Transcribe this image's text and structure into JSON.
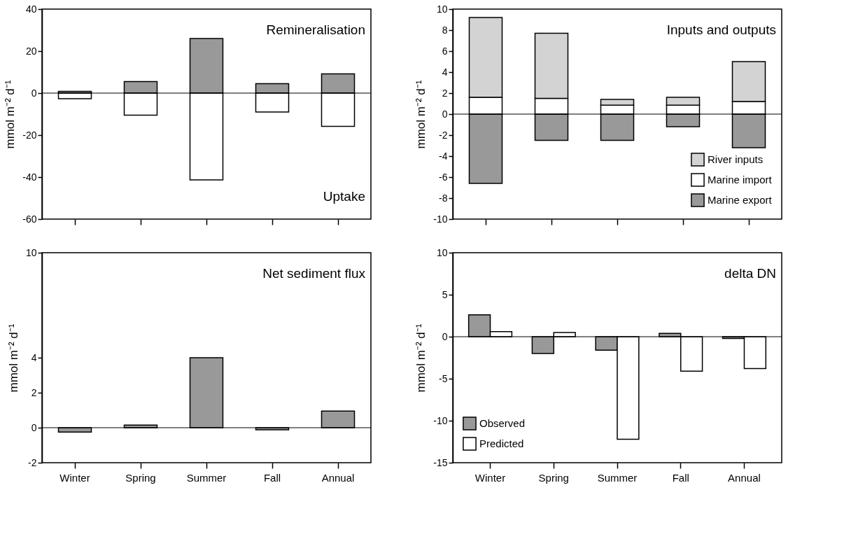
{
  "chart_data": [
    {
      "type": "bar",
      "stacked": true,
      "categories": [
        null,
        null,
        null,
        null,
        null
      ],
      "ylabel": "mmol m⁻² d⁻¹",
      "ylim": [
        -60,
        40
      ],
      "yticks": [
        -60,
        -40,
        -20,
        0,
        20,
        40
      ],
      "tick_labels": "y",
      "grid": false,
      "legend": false,
      "annotations": [
        "Remineralisation",
        "Uptake"
      ],
      "ref_lines": [
        {
          "axis": "y",
          "value": 0
        }
      ],
      "series": [
        {
          "color": "#999999",
          "values": [
            0.8,
            5.5,
            26,
            4.5,
            9.2
          ]
        },
        {
          "color": "#ffffff",
          "values": [
            -2.7,
            -10.5,
            -41.3,
            -9,
            -15.8
          ]
        }
      ]
    },
    {
      "type": "bar",
      "stacked": true,
      "categories": [
        null,
        null,
        null,
        null,
        null
      ],
      "ylabel": "mmol m⁻² d⁻¹",
      "ylim": [
        -10,
        10
      ],
      "yticks": [
        -10,
        -8,
        -6,
        -4,
        -2,
        0,
        2,
        4,
        6,
        8,
        10
      ],
      "tick_labels": "y",
      "grid": false,
      "legend": "bottom right",
      "annotations": [
        "Inputs and outputs"
      ],
      "ref_lines": [
        {
          "axis": "y",
          "value": 0
        }
      ],
      "series": [
        {
          "name": "Marine export",
          "color": "#999999",
          "values": [
            -6.6,
            -2.5,
            -2.5,
            -1.2,
            -3.2
          ]
        },
        {
          "name": "Marine import",
          "color": "#ffffff",
          "values": [
            1.6,
            1.5,
            0.85,
            0.85,
            1.2
          ]
        },
        {
          "name": "River inputs",
          "color": "#d3d3d3",
          "values": [
            7.6,
            6.2,
            0.55,
            0.75,
            3.8
          ]
        }
      ]
    },
    {
      "type": "bar",
      "categories": [
        "Winter",
        "Spring",
        "Summer",
        "Fall",
        "Annual"
      ],
      "ylabel": "mmol m⁻² d⁻¹",
      "ylim": [
        -2,
        10
      ],
      "yticks": [
        -2,
        0,
        2,
        4,
        10
      ],
      "grid": false,
      "legend": false,
      "annotations": [
        "Net sediment flux"
      ],
      "ref_lines": [
        {
          "axis": "y",
          "value": 0
        }
      ],
      "series": [
        {
          "color": "#999999",
          "values": [
            -0.25,
            0.15,
            4.0,
            -0.12,
            0.95
          ]
        }
      ]
    },
    {
      "type": "bar",
      "categories": [
        "Winter",
        "Spring",
        "Summer",
        "Fall",
        "Annual"
      ],
      "ylabel": "mmol m⁻² d⁻¹",
      "ylim": [
        -15,
        10
      ],
      "yticks": [
        -15,
        -10,
        -5,
        0,
        5,
        10
      ],
      "grid": false,
      "legend": "bottom left",
      "annotations": [
        "delta DN"
      ],
      "ref_lines": [
        {
          "axis": "y",
          "value": 0
        }
      ],
      "series": [
        {
          "name": "Observed",
          "color": "#999999",
          "values": [
            2.6,
            -2.0,
            -1.6,
            0.4,
            -0.2
          ]
        },
        {
          "name": "Predicted",
          "color": "#ffffff",
          "values": [
            0.6,
            0.5,
            -12.2,
            -4.1,
            -3.8
          ]
        }
      ]
    }
  ]
}
